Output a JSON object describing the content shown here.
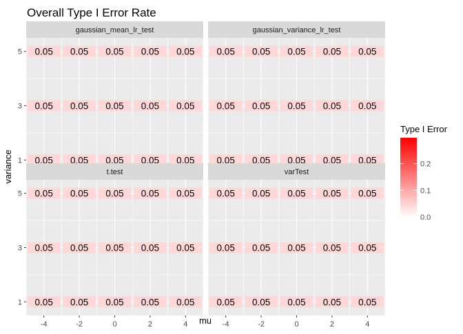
{
  "chart_data": {
    "type": "heatmap",
    "title": "Overall Type I Error Rate",
    "xlabel": "mu",
    "ylabel": "variance",
    "x_ticks": [
      "-4",
      "-2",
      "0",
      "2",
      "4"
    ],
    "y_ticks": [
      "1",
      "3",
      "5"
    ],
    "facets": [
      {
        "name": "gaussian_mean_lr_test",
        "values": [
          [
            0.05,
            0.05,
            0.05,
            0.05,
            0.05
          ],
          [
            0.05,
            0.05,
            0.05,
            0.05,
            0.05
          ],
          [
            0.05,
            0.05,
            0.05,
            0.05,
            0.05
          ]
        ],
        "labels": [
          [
            "0.05",
            "0.05",
            "0.05",
            "0.05",
            "0.05"
          ],
          [
            "0.05",
            "0.05",
            "0.05",
            "0.05",
            "0.05"
          ],
          [
            "0.05",
            "0.05",
            "0.05",
            "0.05",
            "0.05"
          ]
        ]
      },
      {
        "name": "gaussian_variance_lr_test",
        "values": [
          [
            0.05,
            0.05,
            0.05,
            0.05,
            0.05
          ],
          [
            0.05,
            0.05,
            0.05,
            0.05,
            0.05
          ],
          [
            0.05,
            0.05,
            0.05,
            0.05,
            0.05
          ]
        ],
        "labels": [
          [
            "0.05",
            "0.05",
            "0.05",
            "0.05",
            "0.05"
          ],
          [
            "0.05",
            "0.05",
            "0.05",
            "0.05",
            "0.05"
          ],
          [
            "0.05",
            "0.05",
            "0.05",
            "0.05",
            "0.05"
          ]
        ]
      },
      {
        "name": "t.test",
        "values": [
          [
            0.05,
            0.05,
            0.05,
            0.05,
            0.05
          ],
          [
            0.05,
            0.05,
            0.05,
            0.05,
            0.05
          ],
          [
            0.05,
            0.05,
            0.05,
            0.05,
            0.05
          ]
        ],
        "labels": [
          [
            "0.05",
            "0.05",
            "0.05",
            "0.05",
            "0.05"
          ],
          [
            "0.05",
            "0.05",
            "0.05",
            "0.05",
            "0.05"
          ],
          [
            "0.05",
            "0.05",
            "0.05",
            "0.05",
            "0.05"
          ]
        ]
      },
      {
        "name": "varTest",
        "values": [
          [
            0.05,
            0.05,
            0.05,
            0.05,
            0.05
          ],
          [
            0.05,
            0.05,
            0.05,
            0.05,
            0.05
          ],
          [
            0.05,
            0.05,
            0.05,
            0.05,
            0.05
          ]
        ],
        "labels": [
          [
            "0.05",
            "0.05",
            "0.05",
            "0.05",
            "0.05"
          ],
          [
            "0.05",
            "0.05",
            "0.05",
            "0.05",
            "0.05"
          ],
          [
            "0.05",
            "0.05",
            "0.05",
            "0.05",
            "0.05"
          ]
        ]
      }
    ],
    "legend": {
      "title": "Type I Error",
      "ticks": [
        "0.0",
        "0.1",
        "0.2"
      ],
      "tick_values": [
        0.0,
        0.1,
        0.2
      ],
      "range": [
        0,
        0.3
      ],
      "low_color": "#ffffff",
      "high_color": "#ff0000",
      "position": "right"
    },
    "colors": {
      "panel_bg": "#ebebeb",
      "strip_bg": "#d9d9d9",
      "grid": "#ffffff",
      "tile": "#fff0ec"
    },
    "grid": true
  }
}
